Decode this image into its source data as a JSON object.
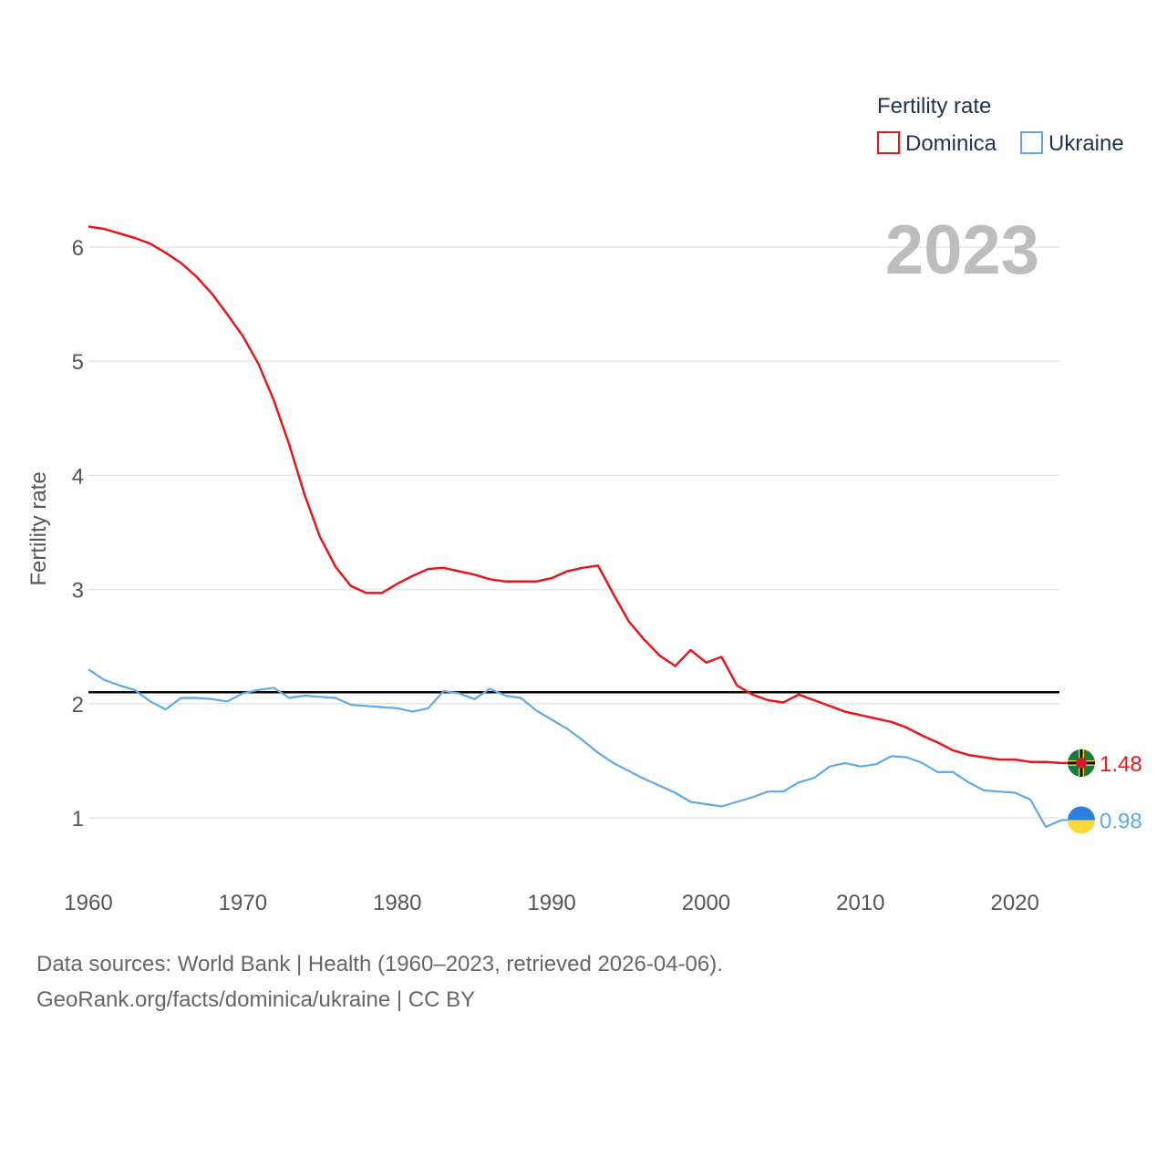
{
  "chart_data": {
    "type": "line",
    "title": "Fertility rate",
    "xlabel": "",
    "ylabel": "Fertility rate",
    "year_display": "2023",
    "xlim": [
      1960,
      2023
    ],
    "ylim": [
      0.55,
      6.4
    ],
    "yticks": [
      1,
      2,
      3,
      4,
      5,
      6
    ],
    "xticks": [
      1960,
      1970,
      1980,
      1990,
      2000,
      2010,
      2020
    ],
    "reference_line": {
      "value": 2.1,
      "color": "#000000"
    },
    "legend_title": "Fertility rate",
    "x": [
      1960,
      1961,
      1962,
      1963,
      1964,
      1965,
      1966,
      1967,
      1968,
      1969,
      1970,
      1971,
      1972,
      1973,
      1974,
      1975,
      1976,
      1977,
      1978,
      1979,
      1980,
      1981,
      1982,
      1983,
      1984,
      1985,
      1986,
      1987,
      1988,
      1989,
      1990,
      1991,
      1992,
      1993,
      1994,
      1995,
      1996,
      1997,
      1998,
      1999,
      2000,
      2001,
      2002,
      2003,
      2004,
      2005,
      2006,
      2007,
      2008,
      2009,
      2010,
      2011,
      2012,
      2013,
      2014,
      2015,
      2016,
      2017,
      2018,
      2019,
      2020,
      2021,
      2022,
      2023
    ],
    "series": [
      {
        "name": "Dominica",
        "color": "#e8161a",
        "end_label": "1.48",
        "values": [
          6.18,
          6.16,
          6.12,
          6.08,
          6.03,
          5.95,
          5.86,
          5.74,
          5.59,
          5.41,
          5.22,
          4.98,
          4.66,
          4.27,
          3.83,
          3.46,
          3.2,
          3.03,
          2.97,
          2.97,
          3.05,
          3.12,
          3.18,
          3.19,
          3.16,
          3.13,
          3.09,
          3.07,
          3.07,
          3.07,
          3.1,
          3.16,
          3.19,
          3.21,
          2.96,
          2.72,
          2.56,
          2.42,
          2.33,
          2.47,
          2.36,
          2.41,
          2.16,
          2.08,
          2.03,
          2.01,
          2.08,
          2.03,
          1.98,
          1.93,
          1.9,
          1.87,
          1.84,
          1.79,
          1.72,
          1.66,
          1.59,
          1.55,
          1.53,
          1.51,
          1.51,
          1.49,
          1.49,
          1.48
        ]
      },
      {
        "name": "Ukraine",
        "color": "#5ea9e6",
        "end_label": "0.98",
        "values": [
          2.3,
          2.21,
          2.16,
          2.12,
          2.02,
          1.95,
          2.05,
          2.05,
          2.04,
          2.02,
          2.09,
          2.12,
          2.14,
          2.05,
          2.07,
          2.06,
          2.05,
          1.99,
          1.98,
          1.97,
          1.96,
          1.93,
          1.96,
          2.11,
          2.09,
          2.04,
          2.13,
          2.07,
          2.05,
          1.94,
          1.86,
          1.78,
          1.68,
          1.57,
          1.48,
          1.41,
          1.34,
          1.28,
          1.22,
          1.14,
          1.12,
          1.1,
          1.14,
          1.18,
          1.23,
          1.23,
          1.31,
          1.35,
          1.45,
          1.48,
          1.45,
          1.47,
          1.54,
          1.53,
          1.48,
          1.4,
          1.4,
          1.31,
          1.24,
          1.23,
          1.22,
          1.16,
          0.92,
          0.98
        ]
      }
    ]
  },
  "footer": {
    "line1": "Data sources: World Bank | Health (1960–2023, retrieved 2026-04-06).",
    "line2": "GeoRank.org/facts/dominica/ukraine | CC BY"
  }
}
